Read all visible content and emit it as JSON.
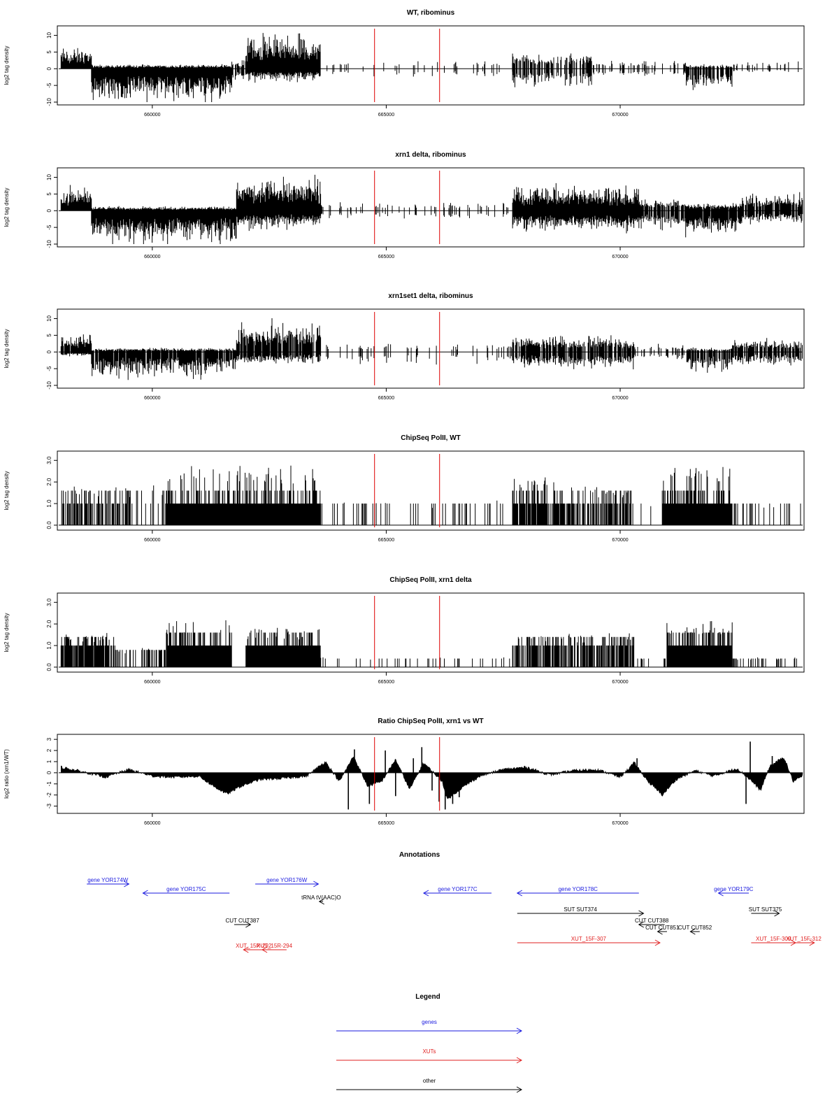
{
  "chart_data": [
    {
      "type": "bar",
      "title": "WT, ribominus",
      "xlabel": "",
      "ylabel": "log2 tag density",
      "xlim": [
        658000,
        673900
      ],
      "ylim": [
        -10,
        12
      ],
      "yticks": [
        "-10",
        "-5",
        "0",
        "5",
        "10"
      ],
      "xticks": [
        "660000",
        "665000",
        "670000"
      ],
      "signed": true,
      "markers": [
        664750,
        666140
      ],
      "marker_color": "#dd0000",
      "profile": [
        {
          "x0": 658050,
          "x1": 658700,
          "pos": 5,
          "neg": 0,
          "density": 1.0
        },
        {
          "x0": 658700,
          "x1": 661700,
          "pos": 1,
          "neg": -8,
          "density": 1.0
        },
        {
          "x0": 661700,
          "x1": 662000,
          "pos": 2,
          "neg": -3,
          "density": 0.7
        },
        {
          "x0": 662000,
          "x1": 663600,
          "pos": 8,
          "neg": -3,
          "density": 1.0
        },
        {
          "x0": 663600,
          "x1": 667700,
          "pos": 2,
          "neg": -2,
          "density": 0.12
        },
        {
          "x0": 667700,
          "x1": 669400,
          "pos": 4,
          "neg": -4,
          "density": 0.6
        },
        {
          "x0": 669400,
          "x1": 671400,
          "pos": 2,
          "neg": -2,
          "density": 0.25
        },
        {
          "x0": 671400,
          "x1": 672400,
          "pos": 1,
          "neg": -5,
          "density": 0.7
        },
        {
          "x0": 672400,
          "x1": 673900,
          "pos": 2,
          "neg": -1,
          "density": 0.15
        }
      ]
    },
    {
      "type": "bar",
      "title": "xrn1 delta, ribominus",
      "xlabel": "",
      "ylabel": "log2 tag density",
      "xlim": [
        658000,
        673900
      ],
      "ylim": [
        -10,
        12
      ],
      "yticks": [
        "-10",
        "-5",
        "0",
        "5",
        "10"
      ],
      "xticks": [
        "660000",
        "665000",
        "670000"
      ],
      "signed": true,
      "markers": [
        664750,
        666140
      ],
      "marker_color": "#dd0000",
      "profile": [
        {
          "x0": 658050,
          "x1": 658700,
          "pos": 6,
          "neg": 0,
          "density": 1.0
        },
        {
          "x0": 658700,
          "x1": 661800,
          "pos": 1,
          "neg": -8,
          "density": 1.0
        },
        {
          "x0": 661800,
          "x1": 663600,
          "pos": 8,
          "neg": -4,
          "density": 1.0
        },
        {
          "x0": 663600,
          "x1": 667700,
          "pos": 2,
          "neg": -2,
          "density": 0.15
        },
        {
          "x0": 667700,
          "x1": 670400,
          "pos": 6,
          "neg": -5,
          "density": 1.0
        },
        {
          "x0": 670400,
          "x1": 671400,
          "pos": 3,
          "neg": -4,
          "density": 0.8
        },
        {
          "x0": 671400,
          "x1": 672600,
          "pos": 2,
          "neg": -6,
          "density": 0.9
        },
        {
          "x0": 672600,
          "x1": 673900,
          "pos": 4,
          "neg": -3,
          "density": 0.9
        }
      ]
    },
    {
      "type": "bar",
      "title": "xrn1set1 delta, ribominus",
      "xlabel": "",
      "ylabel": "log2 tag density",
      "xlim": [
        658000,
        673900
      ],
      "ylim": [
        -10,
        12
      ],
      "yticks": [
        "-10",
        "-5",
        "0",
        "5",
        "10"
      ],
      "xticks": [
        "660000",
        "665000",
        "670000"
      ],
      "signed": true,
      "markers": [
        664750,
        666140
      ],
      "marker_color": "#dd0000",
      "profile": [
        {
          "x0": 658050,
          "x1": 658700,
          "pos": 4,
          "neg": -1,
          "density": 0.9
        },
        {
          "x0": 658700,
          "x1": 661800,
          "pos": 1,
          "neg": -6,
          "density": 0.9
        },
        {
          "x0": 661800,
          "x1": 663600,
          "pos": 7,
          "neg": -3,
          "density": 0.9
        },
        {
          "x0": 663600,
          "x1": 667700,
          "pos": 2,
          "neg": -3,
          "density": 0.15
        },
        {
          "x0": 667700,
          "x1": 670300,
          "pos": 4,
          "neg": -4,
          "density": 0.8
        },
        {
          "x0": 670300,
          "x1": 671400,
          "pos": 2,
          "neg": -2,
          "density": 0.3
        },
        {
          "x0": 671400,
          "x1": 672400,
          "pos": 1,
          "neg": -5,
          "density": 0.7
        },
        {
          "x0": 672400,
          "x1": 673900,
          "pos": 3,
          "neg": -3,
          "density": 0.8
        }
      ]
    },
    {
      "type": "bar",
      "title": "ChipSeq PolII, WT",
      "xlabel": "",
      "ylabel": "log2 tag density",
      "xlim": [
        658000,
        673900
      ],
      "ylim": [
        -0.1,
        3.3
      ],
      "yticks": [
        "0.0",
        "1.0",
        "2.0",
        "3.0"
      ],
      "xticks": [
        "660000",
        "665000",
        "670000"
      ],
      "signed": false,
      "markers": [
        664750,
        666140
      ],
      "marker_color": "#dd0000",
      "profile": [
        {
          "x0": 658050,
          "x1": 659600,
          "pos": 1.6,
          "neg": 0,
          "density": 0.6
        },
        {
          "x0": 659600,
          "x1": 660300,
          "pos": 1.6,
          "neg": 0,
          "density": 0.25
        },
        {
          "x0": 660300,
          "x1": 661800,
          "pos": 2.4,
          "neg": 0,
          "density": 1.0
        },
        {
          "x0": 661800,
          "x1": 663600,
          "pos": 2.4,
          "neg": 0,
          "density": 1.0
        },
        {
          "x0": 663600,
          "x1": 667700,
          "pos": 1.0,
          "neg": 0,
          "density": 0.12
        },
        {
          "x0": 667700,
          "x1": 668900,
          "pos": 2.0,
          "neg": 0,
          "density": 0.9
        },
        {
          "x0": 668900,
          "x1": 670300,
          "pos": 1.6,
          "neg": 0,
          "density": 0.6
        },
        {
          "x0": 670300,
          "x1": 670900,
          "pos": 1.0,
          "neg": 0,
          "density": 0.1
        },
        {
          "x0": 670900,
          "x1": 672400,
          "pos": 2.4,
          "neg": 0,
          "density": 1.0
        },
        {
          "x0": 672400,
          "x1": 673900,
          "pos": 1.0,
          "neg": 0,
          "density": 0.15
        }
      ]
    },
    {
      "type": "bar",
      "title": "ChipSeq PolII, xrn1 delta",
      "xlabel": "",
      "ylabel": "log2 tag density",
      "xlim": [
        658000,
        673900
      ],
      "ylim": [
        -0.1,
        3.3
      ],
      "yticks": [
        "0.0",
        "1.0",
        "2.0",
        "3.0"
      ],
      "xticks": [
        "660000",
        "665000",
        "670000"
      ],
      "signed": false,
      "markers": [
        664750,
        666140
      ],
      "marker_color": "#dd0000",
      "profile": [
        {
          "x0": 658050,
          "x1": 659200,
          "pos": 1.4,
          "neg": 0,
          "density": 0.9
        },
        {
          "x0": 659200,
          "x1": 660300,
          "pos": 0.8,
          "neg": 0,
          "density": 0.4
        },
        {
          "x0": 660300,
          "x1": 661700,
          "pos": 1.9,
          "neg": 0,
          "density": 1.0
        },
        {
          "x0": 661700,
          "x1": 662000,
          "pos": 0.4,
          "neg": 0,
          "density": 0.2
        },
        {
          "x0": 662000,
          "x1": 663600,
          "pos": 1.6,
          "neg": 0,
          "density": 1.0
        },
        {
          "x0": 663600,
          "x1": 667700,
          "pos": 0.4,
          "neg": 0,
          "density": 0.1
        },
        {
          "x0": 667700,
          "x1": 670300,
          "pos": 1.4,
          "neg": 0,
          "density": 0.7
        },
        {
          "x0": 670300,
          "x1": 671000,
          "pos": 0.4,
          "neg": 0,
          "density": 0.2
        },
        {
          "x0": 671000,
          "x1": 672400,
          "pos": 1.9,
          "neg": 0,
          "density": 1.0
        },
        {
          "x0": 672400,
          "x1": 673900,
          "pos": 0.4,
          "neg": 0,
          "density": 0.2
        }
      ]
    },
    {
      "type": "area",
      "title": "Ratio ChipSeq PolII, xrn1 vs WT",
      "xlabel": "",
      "ylabel": "log2 ratio (xrn1/WT)",
      "xlim": [
        658000,
        673900
      ],
      "ylim": [
        -3.4,
        3.2
      ],
      "yticks": [
        "-3",
        "-2",
        "-1",
        "0",
        "1",
        "2",
        "3"
      ],
      "xticks": [
        "660000",
        "665000",
        "670000"
      ],
      "markers": [
        664750,
        666140
      ],
      "marker_color": "#dd0000",
      "baseline": [
        [
          658050,
          0.5
        ],
        [
          658500,
          0.1
        ],
        [
          659000,
          -0.4
        ],
        [
          659500,
          0.3
        ],
        [
          660000,
          -0.3
        ],
        [
          660500,
          -0.4
        ],
        [
          661000,
          -0.3
        ],
        [
          661300,
          -1.2
        ],
        [
          661600,
          -1.9
        ],
        [
          661900,
          -1.2
        ],
        [
          662300,
          -0.6
        ],
        [
          662800,
          -0.5
        ],
        [
          663300,
          -0.3
        ],
        [
          663700,
          1.0
        ],
        [
          664000,
          -0.8
        ],
        [
          664300,
          1.5
        ],
        [
          664600,
          -1.2
        ],
        [
          664900,
          -0.8
        ],
        [
          665200,
          1.2
        ],
        [
          665500,
          -1.5
        ],
        [
          665800,
          0.9
        ],
        [
          666200,
          -0.8
        ],
        [
          666300,
          -2.4
        ],
        [
          666600,
          -1.4
        ],
        [
          667000,
          -0.3
        ],
        [
          667500,
          0.3
        ],
        [
          668000,
          0.5
        ],
        [
          668500,
          -0.2
        ],
        [
          669000,
          0.2
        ],
        [
          669500,
          0.3
        ],
        [
          670000,
          -0.4
        ],
        [
          670300,
          0.9
        ],
        [
          670600,
          -0.8
        ],
        [
          670900,
          -2.0
        ],
        [
          671200,
          -0.6
        ],
        [
          671600,
          0.2
        ],
        [
          672000,
          -0.3
        ],
        [
          672500,
          0.4
        ],
        [
          672800,
          -0.7
        ],
        [
          673000,
          -1.6
        ],
        [
          673200,
          0.6
        ],
        [
          673500,
          1.4
        ],
        [
          673700,
          -0.8
        ],
        [
          673900,
          -0.3
        ]
      ],
      "spikes": [
        [
          664190,
          -3.3
        ],
        [
          664320,
          2.1
        ],
        [
          664640,
          -2.8
        ],
        [
          664980,
          2.0
        ],
        [
          665200,
          -2.1
        ],
        [
          665580,
          1.3
        ],
        [
          665760,
          2.3
        ],
        [
          665980,
          -1.6
        ],
        [
          666130,
          -2.6
        ],
        [
          666260,
          -3.3
        ],
        [
          666420,
          -2.8
        ],
        [
          666560,
          -2.2
        ],
        [
          670360,
          1.3
        ],
        [
          672690,
          -2.8
        ],
        [
          672780,
          2.8
        ],
        [
          673250,
          1.5
        ]
      ]
    }
  ],
  "annotations": {
    "title": "Annotations",
    "items": [
      {
        "label": "gene YOR174W",
        "x0": 658600,
        "x1": 659500,
        "row": 0,
        "dir": "fwd",
        "color": "#1a1adf"
      },
      {
        "label": "gene YOR175C",
        "x0": 659800,
        "x1": 661650,
        "row": 1,
        "dir": "rev",
        "color": "#1a1adf"
      },
      {
        "label": "gene YOR176W",
        "x0": 662200,
        "x1": 663550,
        "row": 0,
        "dir": "fwd",
        "color": "#1a1adf"
      },
      {
        "label": "tRNA tV(AAC)O",
        "x0": 663570,
        "x1": 663650,
        "row": 2,
        "dir": "rev",
        "color": "#000000"
      },
      {
        "label": "gene YOR177C",
        "x0": 665800,
        "x1": 667250,
        "row": 1,
        "dir": "rev",
        "color": "#1a1adf"
      },
      {
        "label": "gene YOR178C",
        "x0": 667800,
        "x1": 670400,
        "row": 1,
        "dir": "rev",
        "color": "#1a1adf"
      },
      {
        "label": "gene YOR179C",
        "x0": 672100,
        "x1": 672750,
        "row": 1,
        "dir": "rev",
        "color": "#1a1adf"
      },
      {
        "label": "SUT SUT374",
        "x0": 667800,
        "x1": 670500,
        "row": 3,
        "dir": "fwd",
        "color": "#000000"
      },
      {
        "label": "SUT SUT375",
        "x0": 672800,
        "x1": 673400,
        "row": 3,
        "dir": "fwd",
        "color": "#000000"
      },
      {
        "label": "CUT CUT387",
        "x0": 661750,
        "x1": 662100,
        "row": 4,
        "dir": "fwd",
        "color": "#000000"
      },
      {
        "label": "CUT CUT388",
        "x0": 670400,
        "x1": 670950,
        "row": 4,
        "dir": "rev",
        "color": "#000000"
      },
      {
        "label": "CUT CUT851",
        "x0": 670800,
        "x1": 671000,
        "row": 5,
        "dir": "rev",
        "color": "#000000"
      },
      {
        "label": "CUT CUT852",
        "x0": 671500,
        "x1": 671700,
        "row": 5,
        "dir": "rev",
        "color": "#000000"
      },
      {
        "label": "XUT_15F-307",
        "x0": 667800,
        "x1": 670850,
        "row": 6,
        "dir": "fwd",
        "color": "#e02020"
      },
      {
        "label": "XUT_15F-309",
        "x0": 672800,
        "x1": 673750,
        "row": 6,
        "dir": "fwd",
        "color": "#e02020"
      },
      {
        "label": "XUT_15F-312",
        "x0": 673700,
        "x1": 674150,
        "row": 6,
        "dir": "fwd",
        "color": "#e02020"
      },
      {
        "label": "XUT_15R-292",
        "x0": 661950,
        "x1": 662380,
        "row": 7,
        "dir": "rev",
        "color": "#e02020"
      },
      {
        "label": "XUT_15R-294",
        "x0": 662350,
        "x1": 662870,
        "row": 7,
        "dir": "rev",
        "color": "#e02020"
      }
    ]
  },
  "legend": {
    "title": "Legend",
    "items": [
      {
        "label": "genes",
        "color": "#1a1adf"
      },
      {
        "label": "XUTs",
        "color": "#e02020"
      },
      {
        "label": "other",
        "color": "#000000"
      }
    ]
  }
}
